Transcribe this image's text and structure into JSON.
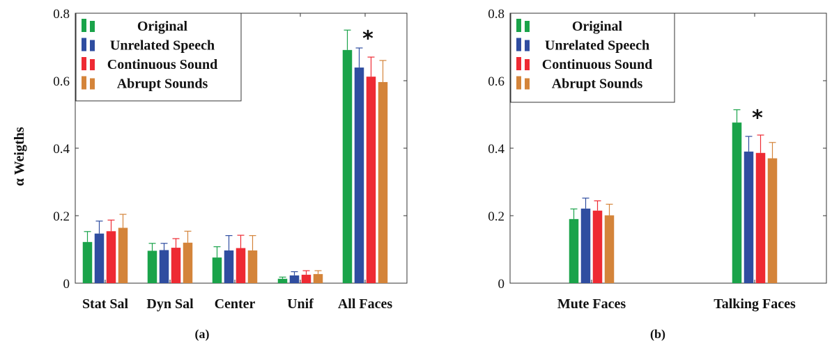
{
  "colors": {
    "Original": "#1aa34a",
    "Unrelated Speech": "#2f4da0",
    "Continuous Sound": "#ee2a33",
    "Abrupt Sounds": "#d4843a"
  },
  "chart_data": [
    {
      "type": "bar",
      "subcaption": "(a)",
      "ylabel": "α Weigths",
      "xlabel": "",
      "ylim": [
        0,
        0.8
      ],
      "yticks": [
        0,
        0.2,
        0.4,
        0.6,
        0.8
      ],
      "ytick_labels": [
        "0",
        "0.2",
        "0.4",
        "0.6",
        "0.8"
      ],
      "grid": false,
      "legend_position": "top-left",
      "categories": [
        "Stat Sal",
        "Dyn Sal",
        "Center",
        "Unif",
        "All Faces"
      ],
      "series": [
        {
          "name": "Original",
          "values": [
            0.122,
            0.096,
            0.076,
            0.013,
            0.691
          ],
          "errors": [
            0.031,
            0.022,
            0.032,
            0.005,
            0.059
          ]
        },
        {
          "name": "Unrelated Speech",
          "values": [
            0.147,
            0.098,
            0.097,
            0.023,
            0.639
          ],
          "errors": [
            0.037,
            0.02,
            0.044,
            0.011,
            0.058
          ]
        },
        {
          "name": "Continuous Sound",
          "values": [
            0.154,
            0.105,
            0.104,
            0.025,
            0.612
          ],
          "errors": [
            0.033,
            0.027,
            0.038,
            0.012,
            0.058
          ]
        },
        {
          "name": "Abrupt Sounds",
          "values": [
            0.164,
            0.12,
            0.097,
            0.027,
            0.596
          ],
          "errors": [
            0.04,
            0.034,
            0.044,
            0.01,
            0.064
          ]
        }
      ],
      "annotations": [
        {
          "text": "*",
          "category": "All Faces"
        }
      ]
    },
    {
      "type": "bar",
      "subcaption": "(b)",
      "ylabel": "",
      "xlabel": "",
      "ylim": [
        0,
        0.8
      ],
      "yticks": [
        0,
        0.2,
        0.4,
        0.6,
        0.8
      ],
      "ytick_labels": [
        "0",
        "0.2",
        "0.4",
        "0.6",
        "0.8"
      ],
      "grid": false,
      "legend_position": "top-left",
      "categories": [
        "Mute Faces",
        "Talking Faces"
      ],
      "series": [
        {
          "name": "Original",
          "values": [
            0.19,
            0.476
          ],
          "errors": [
            0.03,
            0.038
          ]
        },
        {
          "name": "Unrelated Speech",
          "values": [
            0.221,
            0.39
          ],
          "errors": [
            0.031,
            0.045
          ]
        },
        {
          "name": "Continuous Sound",
          "values": [
            0.215,
            0.386
          ],
          "errors": [
            0.029,
            0.053
          ]
        },
        {
          "name": "Abrupt Sounds",
          "values": [
            0.201,
            0.37
          ],
          "errors": [
            0.033,
            0.047
          ]
        }
      ],
      "annotations": [
        {
          "text": "*",
          "category": "Talking Faces"
        }
      ]
    }
  ]
}
